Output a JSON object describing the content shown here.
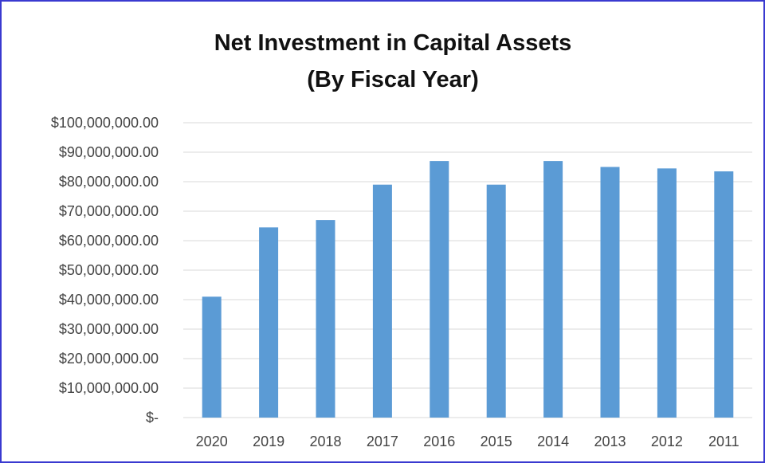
{
  "chart_data": {
    "type": "bar",
    "title": "Net Investment in Capital Assets",
    "subtitle": "(By Fiscal Year)",
    "xlabel": "",
    "ylabel": "",
    "categories": [
      "2020",
      "2019",
      "2018",
      "2017",
      "2016",
      "2015",
      "2014",
      "2013",
      "2012",
      "2011"
    ],
    "values": [
      41000000,
      64500000,
      67000000,
      79000000,
      87000000,
      79000000,
      87000000,
      85000000,
      84500000,
      83500000
    ],
    "ylim": [
      0,
      100000000
    ],
    "yticks": [
      0,
      10000000,
      20000000,
      30000000,
      40000000,
      50000000,
      60000000,
      70000000,
      80000000,
      90000000,
      100000000
    ],
    "ytick_labels": [
      "$-",
      "$10,000,000.00",
      "$20,000,000.00",
      "$30,000,000.00",
      "$40,000,000.00",
      "$50,000,000.00",
      "$60,000,000.00",
      "$70,000,000.00",
      "$80,000,000.00",
      "$90,000,000.00",
      "$100,000,000.00"
    ],
    "grid": true,
    "legend": "none",
    "colors": {
      "bar": "#5b9bd5",
      "grid": "#d9d9d9",
      "frame": "#3a3ad0"
    }
  }
}
